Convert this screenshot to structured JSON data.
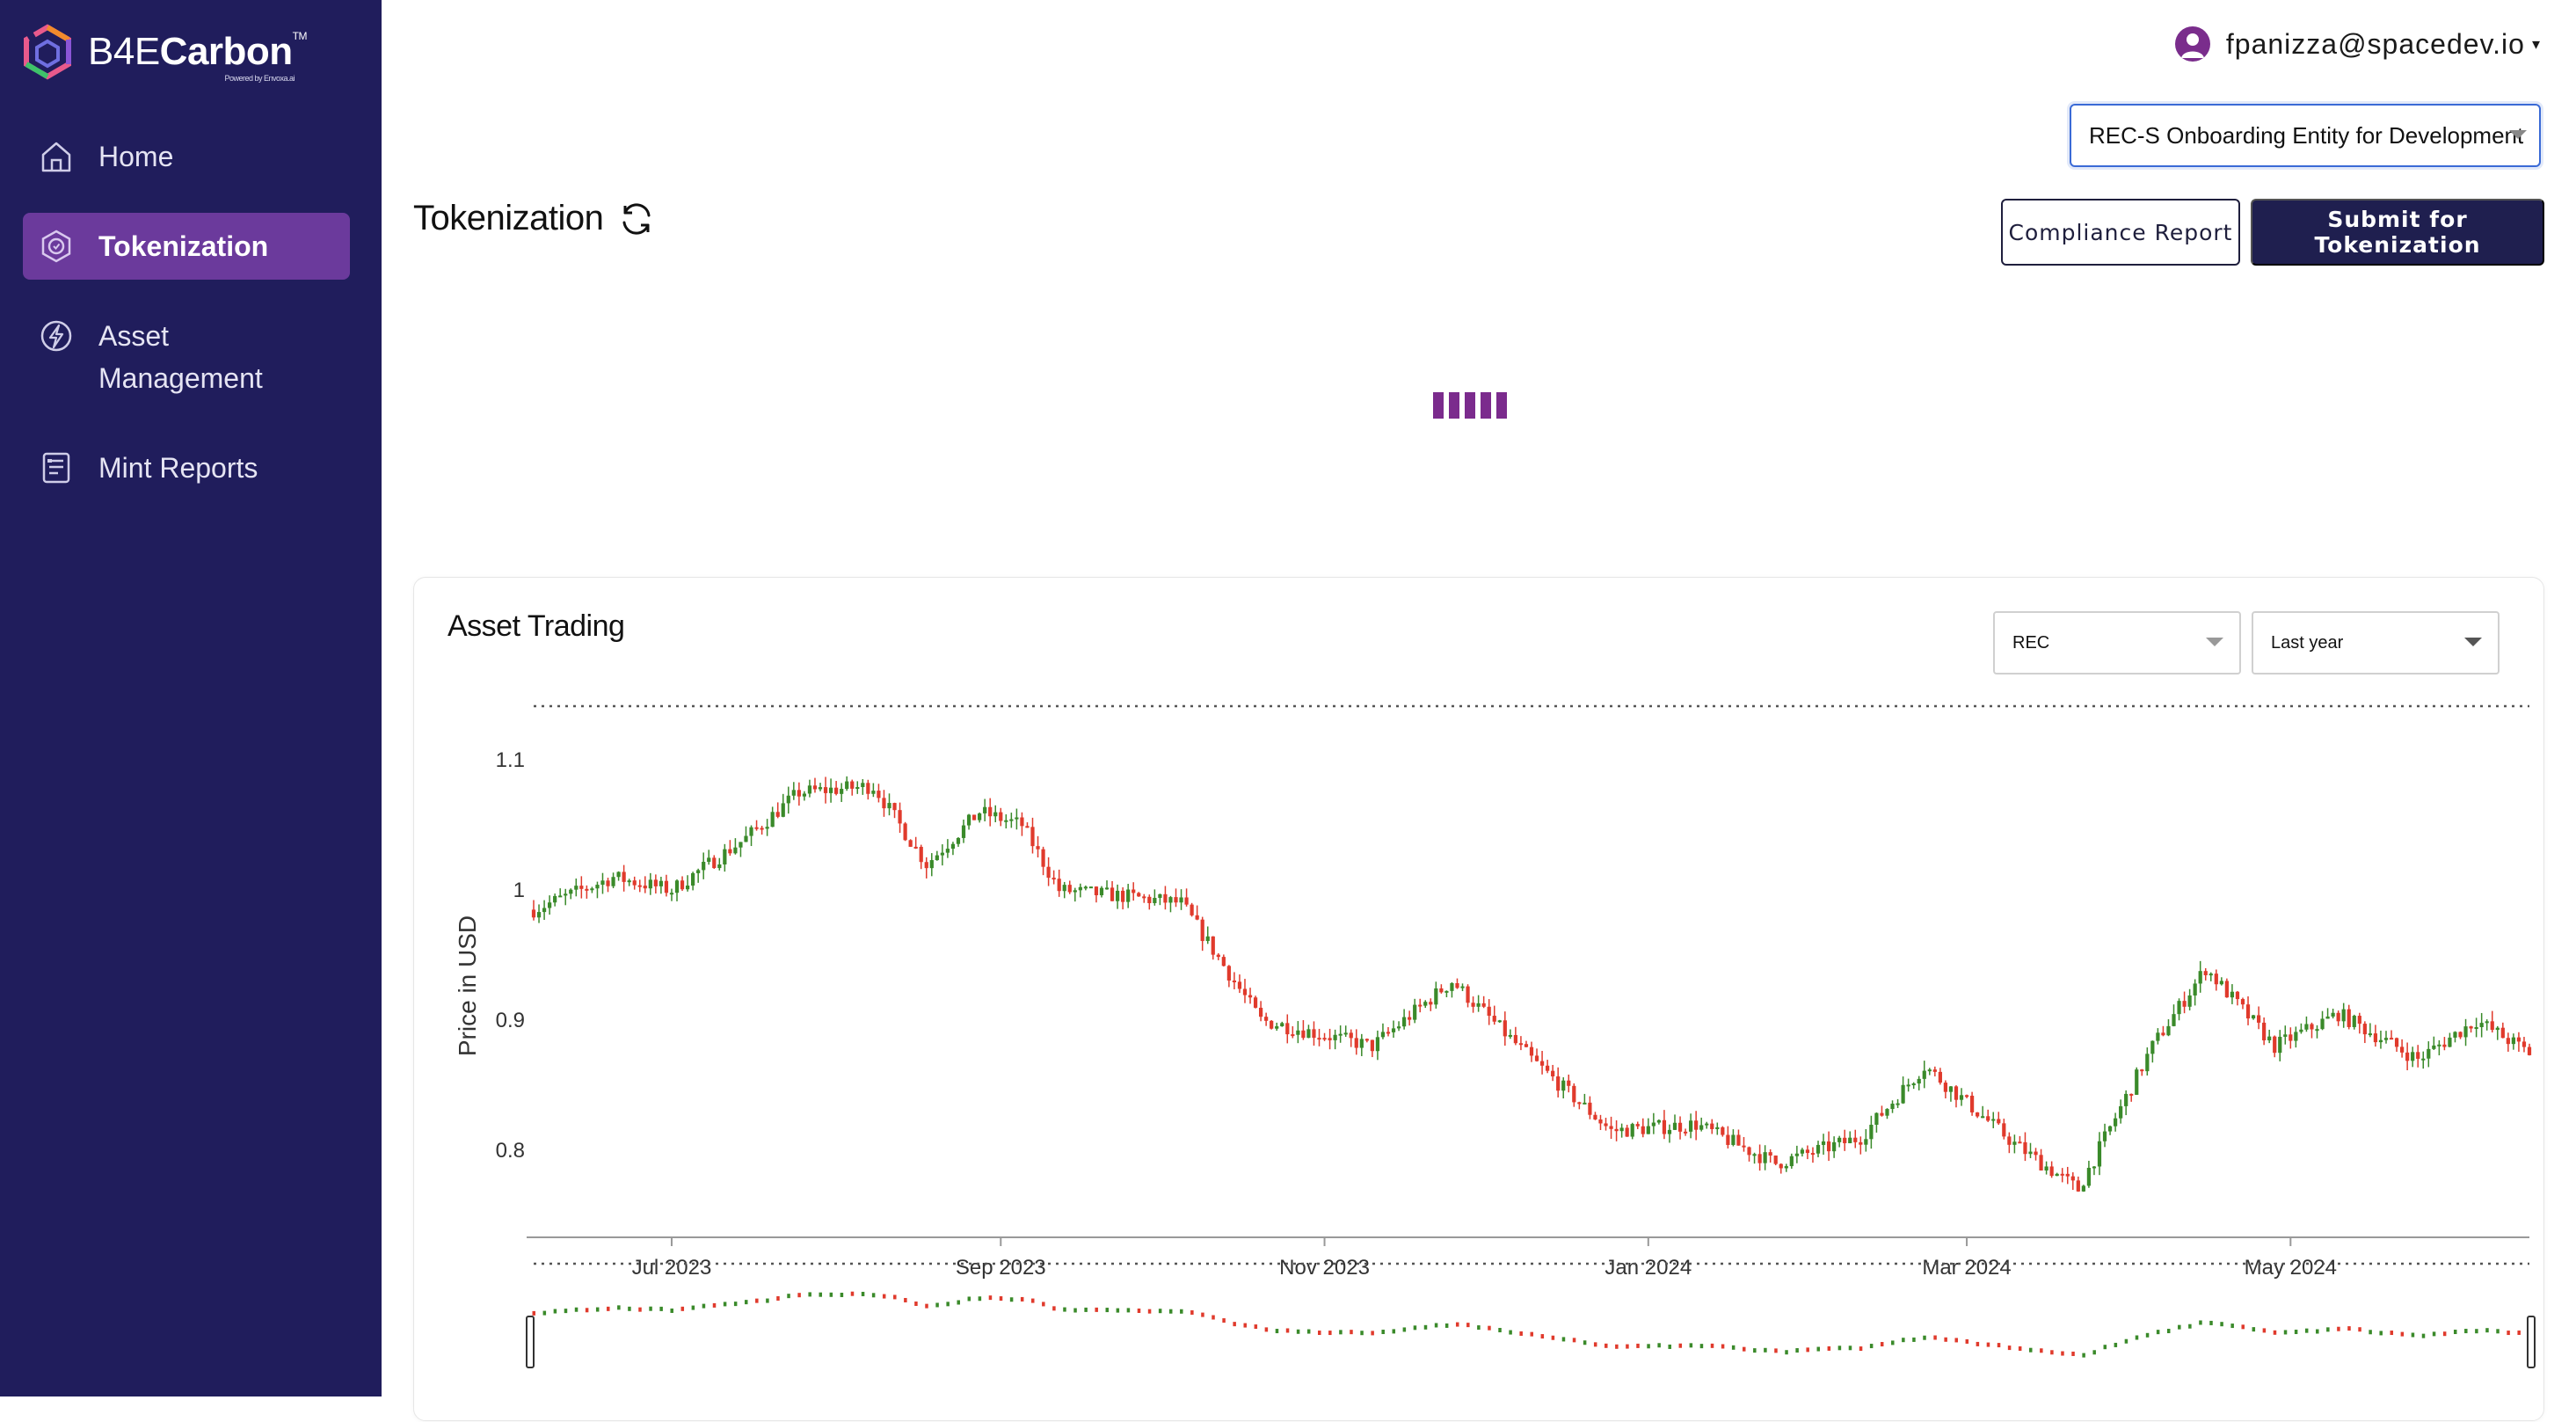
{
  "brand": {
    "name_light": "B4E",
    "name_bold": "Carbon",
    "tm": "TM",
    "tagline": "Powered by Envoxa.ai"
  },
  "sidebar": {
    "items": [
      {
        "label": "Home",
        "icon": "home-icon",
        "active": false
      },
      {
        "label": "Tokenization",
        "icon": "token-icon",
        "active": true
      },
      {
        "label": "Asset Management",
        "icon": "bolt-icon",
        "active": false
      },
      {
        "label": "Mint Reports",
        "icon": "report-icon",
        "active": false
      }
    ]
  },
  "header": {
    "user_email": "fpanizza@spacedev.io",
    "entity_selected": "REC-S Onboarding Entity for Development"
  },
  "page": {
    "title": "Tokenization",
    "compliance_label": "Compliance Report",
    "submit_label": "Submit for Tokenization"
  },
  "card": {
    "title": "Asset Trading",
    "asset_selected": "REC",
    "period_selected": "Last year"
  },
  "colors": {
    "sidebar_bg": "#201d5c",
    "active_item": "#6b3a9c",
    "primary_btn": "#1f1f4f",
    "up": "#3a8a2a",
    "down": "#e03a2c",
    "loader": "#7b2b8d"
  },
  "chart_data": {
    "type": "candlestick",
    "ylabel": "Price in USD",
    "yticks": [
      0.8,
      0.9,
      1,
      1.1
    ],
    "ytick_labels": [
      "0.8",
      "0.9",
      "1",
      "1.1"
    ],
    "ylim": [
      0.74,
      1.14
    ],
    "x_start": "2023-06-05",
    "x_end": "2024-06-15",
    "xticks": [
      {
        "date": "2023-07-01",
        "label": "Jul 2023"
      },
      {
        "date": "2023-09-01",
        "label": "Sep 2023"
      },
      {
        "date": "2023-11-01",
        "label": "Nov 2023"
      },
      {
        "date": "2024-01-01",
        "label": "Jan 2024"
      },
      {
        "date": "2024-03-01",
        "label": "Mar 2024"
      },
      {
        "date": "2024-05-01",
        "label": "May 2024"
      }
    ],
    "trend": [
      {
        "date": "2023-06-05",
        "value": 0.985
      },
      {
        "date": "2023-06-20",
        "value": 1.01
      },
      {
        "date": "2023-07-01",
        "value": 1.0
      },
      {
        "date": "2023-07-15",
        "value": 1.04
      },
      {
        "date": "2023-07-25",
        "value": 1.075
      },
      {
        "date": "2023-08-08",
        "value": 1.08
      },
      {
        "date": "2023-08-18",
        "value": 1.02
      },
      {
        "date": "2023-08-28",
        "value": 1.06
      },
      {
        "date": "2023-09-05",
        "value": 1.05
      },
      {
        "date": "2023-09-12",
        "value": 1.0
      },
      {
        "date": "2023-09-25",
        "value": 0.995
      },
      {
        "date": "2023-10-05",
        "value": 0.99
      },
      {
        "date": "2023-10-20",
        "value": 0.9
      },
      {
        "date": "2023-11-10",
        "value": 0.88
      },
      {
        "date": "2023-11-25",
        "value": 0.93
      },
      {
        "date": "2023-12-10",
        "value": 0.87
      },
      {
        "date": "2023-12-25",
        "value": 0.815
      },
      {
        "date": "2024-01-10",
        "value": 0.82
      },
      {
        "date": "2024-01-25",
        "value": 0.79
      },
      {
        "date": "2024-02-10",
        "value": 0.81
      },
      {
        "date": "2024-02-22",
        "value": 0.865
      },
      {
        "date": "2024-03-10",
        "value": 0.805
      },
      {
        "date": "2024-03-22",
        "value": 0.77
      },
      {
        "date": "2024-04-05",
        "value": 0.88
      },
      {
        "date": "2024-04-15",
        "value": 0.94
      },
      {
        "date": "2024-04-28",
        "value": 0.88
      },
      {
        "date": "2024-05-10",
        "value": 0.905
      },
      {
        "date": "2024-05-25",
        "value": 0.87
      },
      {
        "date": "2024-06-05",
        "value": 0.9
      },
      {
        "date": "2024-06-15",
        "value": 0.875
      }
    ],
    "range_selector": true,
    "grid": false
  }
}
